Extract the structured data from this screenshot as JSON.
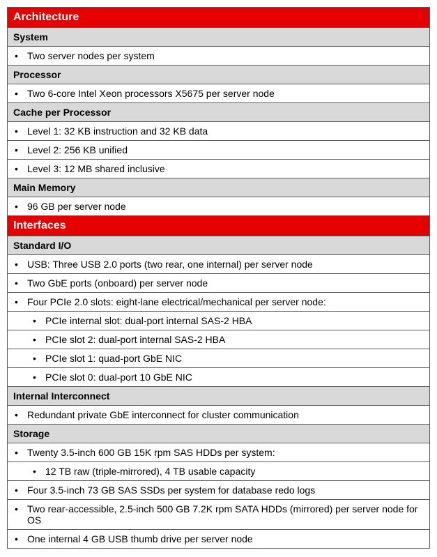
{
  "colors": {
    "section_header_bg": "#e60000",
    "section_header_fg": "#ffffff",
    "sub_header_bg": "#d9d9d9",
    "sub_header_fg": "#000000",
    "item_bg": "#ffffff",
    "item_fg": "#000000",
    "border": "#595959"
  },
  "typography": {
    "font_family": "Arial, Helvetica, sans-serif",
    "section_header_size": 16,
    "sub_header_size": 14,
    "item_size": 14
  },
  "sections": [
    {
      "title": "Architecture",
      "subsections": [
        {
          "title": "System",
          "items": [
            {
              "text": "Two server nodes per system",
              "indent": 1
            }
          ]
        },
        {
          "title": "Processor",
          "items": [
            {
              "text": "Two 6-core Intel Xeon processors X5675 per server node",
              "indent": 1
            }
          ]
        },
        {
          "title": "Cache per Processor",
          "items": [
            {
              "text": "Level 1: 32 KB instruction and 32 KB data",
              "indent": 1
            },
            {
              "text": "Level 2: 256 KB unified",
              "indent": 1
            },
            {
              "text": "Level 3: 12 MB shared inclusive",
              "indent": 1
            }
          ]
        },
        {
          "title": "Main Memory",
          "items": [
            {
              "text": "96 GB per server node",
              "indent": 1
            }
          ]
        }
      ]
    },
    {
      "title": "Interfaces",
      "subsections": [
        {
          "title": "Standard I/O",
          "items": [
            {
              "text": "USB: Three USB 2.0 ports (two rear, one internal) per server node",
              "indent": 1
            },
            {
              "text": "Two GbE ports (onboard) per server node",
              "indent": 1
            },
            {
              "text": "Four PCIe 2.0 slots: eight-lane electrical/mechanical per server node:",
              "indent": 1
            },
            {
              "text": "PCIe internal slot: dual-port internal SAS-2 HBA",
              "indent": 2
            },
            {
              "text": "PCIe slot 2: dual-port internal SAS-2 HBA",
              "indent": 2
            },
            {
              "text": "PCIe slot 1: quad-port GbE NIC",
              "indent": 2
            },
            {
              "text": "PCIe slot 0: dual-port 10 GbE NIC",
              "indent": 2
            }
          ]
        },
        {
          "title": "Internal Interconnect",
          "items": [
            {
              "text": "Redundant private GbE interconnect for cluster communication",
              "indent": 1
            }
          ]
        },
        {
          "title": "Storage",
          "items": [
            {
              "text": "Twenty 3.5-inch 600 GB 15K rpm SAS HDDs per system:",
              "indent": 1
            },
            {
              "text": "12 TB raw (triple-mirrored), 4 TB usable capacity",
              "indent": 2
            },
            {
              "text": "Four 3.5-inch 73 GB SAS SSDs per system for database redo logs",
              "indent": 1
            },
            {
              "text": "Two rear-accessible, 2.5-inch 500 GB 7.2K rpm SATA HDDs (mirrored) per server node for OS",
              "indent": 1
            },
            {
              "text": "One internal 4 GB USB thumb drive per server node",
              "indent": 1
            }
          ]
        }
      ]
    }
  ]
}
